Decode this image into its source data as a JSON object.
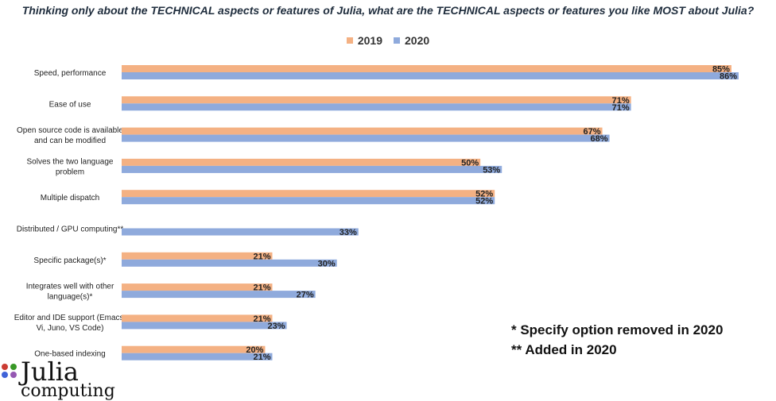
{
  "title": "Thinking only about the TECHNICAL aspects or features of Julia, what are the TECHNICAL aspects or features you like MOST about Julia?",
  "colors": {
    "s2019": "#f4b183",
    "s2020": "#8faadc"
  },
  "legend": [
    "2019",
    "2020"
  ],
  "notes": [
    "* Specify option removed in 2020",
    "** Added in 2020"
  ],
  "logo": {
    "name": "Julia",
    "sub": "computing",
    "dot_colors": [
      "#cb3c33",
      "#389826",
      "#4063d8",
      "#9558b2"
    ]
  },
  "chart_data": {
    "type": "bar",
    "orientation": "horizontal",
    "categories": [
      "Speed, performance",
      "Ease of use",
      "Open source code is available and can be modified",
      "Solves the two language problem",
      "Multiple dispatch",
      "Distributed / GPU computing**",
      "Specific package(s)*",
      "Integrates well with other language(s)*",
      "Editor and IDE support (Emacs, Vi, Juno, VS Code)",
      "One-based indexing"
    ],
    "series": [
      {
        "name": "2019",
        "values": [
          85,
          71,
          67,
          50,
          52,
          null,
          21,
          21,
          21,
          20
        ]
      },
      {
        "name": "2020",
        "values": [
          86,
          71,
          68,
          53,
          52,
          33,
          30,
          27,
          23,
          21
        ]
      }
    ],
    "value_suffix": "%",
    "xlim": [
      0,
      86
    ],
    "grid": false
  }
}
